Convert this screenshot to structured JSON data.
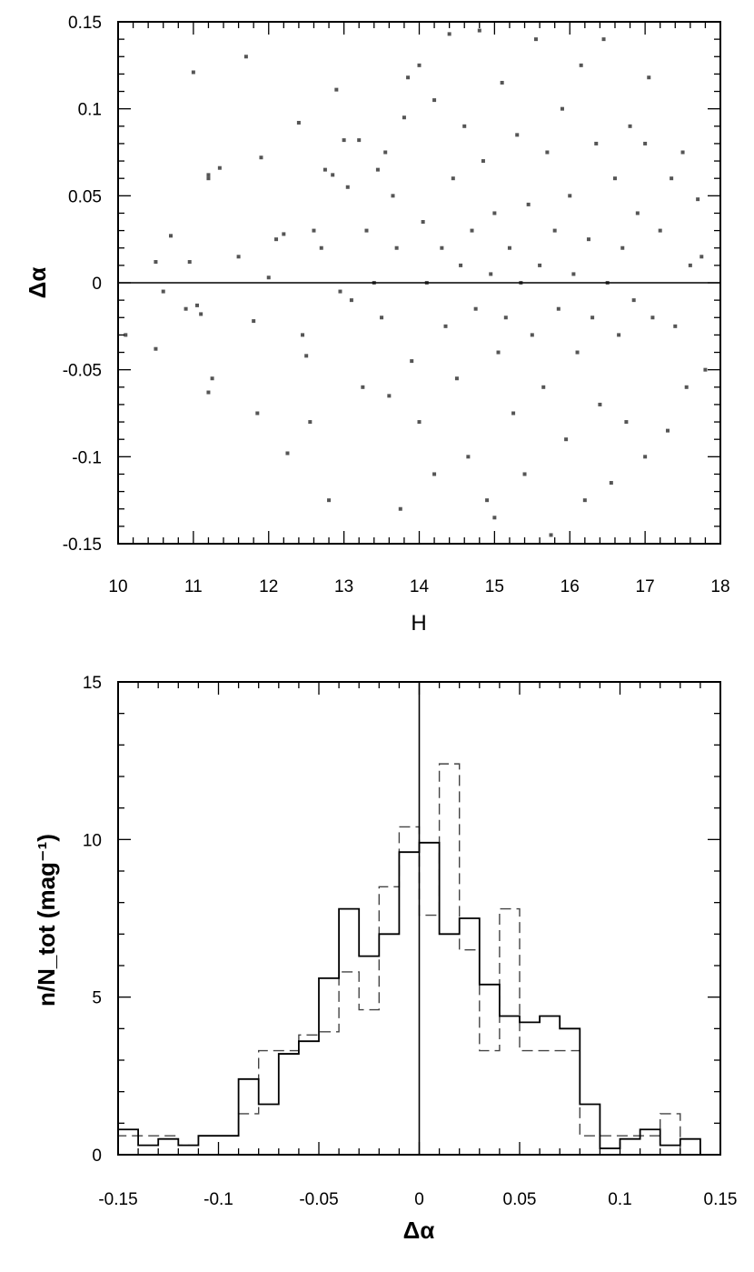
{
  "chart_data": [
    {
      "type": "scatter",
      "xlabel": "H",
      "ylabel": "Δα",
      "xlim": [
        10,
        18
      ],
      "ylim": [
        -0.15,
        0.15
      ],
      "x_ticks": [
        "10",
        "11",
        "12",
        "13",
        "14",
        "15",
        "16",
        "17",
        "18"
      ],
      "y_ticks": [
        "-0.15",
        "-0.1",
        "-0.05",
        "0",
        "0.05",
        "0.1",
        "0.15"
      ],
      "reference_line_y": 0,
      "grid": false,
      "points": [
        [
          10.1,
          -0.03
        ],
        [
          10.5,
          0.012
        ],
        [
          10.5,
          -0.038
        ],
        [
          10.6,
          -0.005
        ],
        [
          10.7,
          0.027
        ],
        [
          10.9,
          -0.015
        ],
        [
          10.95,
          0.012
        ],
        [
          11.0,
          0.121
        ],
        [
          11.05,
          -0.013
        ],
        [
          11.1,
          -0.018
        ],
        [
          11.2,
          0.062
        ],
        [
          11.2,
          0.06
        ],
        [
          11.2,
          -0.063
        ],
        [
          11.25,
          -0.055
        ],
        [
          11.35,
          0.066
        ],
        [
          11.6,
          0.015
        ],
        [
          11.7,
          0.13
        ],
        [
          11.8,
          -0.022
        ],
        [
          11.85,
          -0.075
        ],
        [
          11.9,
          0.072
        ],
        [
          12.0,
          0.003
        ],
        [
          12.1,
          0.025
        ],
        [
          12.2,
          0.028
        ],
        [
          12.25,
          -0.098
        ],
        [
          12.4,
          0.092
        ],
        [
          12.45,
          -0.03
        ],
        [
          12.5,
          -0.042
        ],
        [
          12.55,
          -0.08
        ],
        [
          12.6,
          0.03
        ],
        [
          12.7,
          0.02
        ],
        [
          12.75,
          0.065
        ],
        [
          12.8,
          -0.125
        ],
        [
          12.85,
          0.062
        ],
        [
          12.9,
          0.111
        ],
        [
          12.95,
          -0.005
        ],
        [
          13.0,
          0.082
        ],
        [
          13.05,
          0.055
        ],
        [
          13.1,
          -0.01
        ],
        [
          13.2,
          0.082
        ],
        [
          13.25,
          -0.06
        ],
        [
          13.3,
          0.03
        ],
        [
          13.4,
          0.0
        ],
        [
          13.45,
          0.065
        ],
        [
          13.5,
          -0.02
        ],
        [
          13.55,
          0.075
        ],
        [
          13.6,
          -0.065
        ],
        [
          13.65,
          0.05
        ],
        [
          13.7,
          0.02
        ],
        [
          13.75,
          -0.13
        ],
        [
          13.8,
          0.095
        ],
        [
          13.85,
          0.118
        ],
        [
          13.9,
          -0.045
        ],
        [
          14.0,
          0.125
        ],
        [
          14.0,
          -0.08
        ],
        [
          14.05,
          0.035
        ],
        [
          14.1,
          0.0
        ],
        [
          14.2,
          0.105
        ],
        [
          14.2,
          -0.11
        ],
        [
          14.3,
          0.02
        ],
        [
          14.35,
          -0.025
        ],
        [
          14.4,
          0.143
        ],
        [
          14.45,
          0.06
        ],
        [
          14.5,
          -0.055
        ],
        [
          14.55,
          0.01
        ],
        [
          14.6,
          0.09
        ],
        [
          14.65,
          -0.1
        ],
        [
          14.7,
          0.03
        ],
        [
          14.75,
          -0.015
        ],
        [
          14.8,
          0.145
        ],
        [
          14.85,
          0.07
        ],
        [
          14.9,
          -0.125
        ],
        [
          14.95,
          0.005
        ],
        [
          15.0,
          -0.135
        ],
        [
          15.0,
          0.04
        ],
        [
          15.05,
          -0.04
        ],
        [
          15.1,
          0.115
        ],
        [
          15.15,
          -0.02
        ],
        [
          15.2,
          0.02
        ],
        [
          15.25,
          -0.075
        ],
        [
          15.3,
          0.085
        ],
        [
          15.35,
          0.0
        ],
        [
          15.4,
          -0.11
        ],
        [
          15.45,
          0.045
        ],
        [
          15.5,
          -0.03
        ],
        [
          15.55,
          0.14
        ],
        [
          15.6,
          0.01
        ],
        [
          15.65,
          -0.06
        ],
        [
          15.7,
          0.075
        ],
        [
          15.75,
          -0.145
        ],
        [
          15.8,
          0.03
        ],
        [
          15.85,
          -0.015
        ],
        [
          15.9,
          0.1
        ],
        [
          15.95,
          -0.09
        ],
        [
          16.0,
          0.05
        ],
        [
          16.05,
          0.005
        ],
        [
          16.1,
          -0.04
        ],
        [
          16.15,
          0.125
        ],
        [
          16.2,
          -0.125
        ],
        [
          16.25,
          0.025
        ],
        [
          16.3,
          -0.02
        ],
        [
          16.35,
          0.08
        ],
        [
          16.4,
          -0.07
        ],
        [
          16.45,
          0.14
        ],
        [
          16.5,
          0.0
        ],
        [
          16.55,
          -0.115
        ],
        [
          16.6,
          0.06
        ],
        [
          16.65,
          -0.03
        ],
        [
          16.7,
          0.02
        ],
        [
          16.75,
          -0.08
        ],
        [
          16.8,
          0.09
        ],
        [
          16.85,
          -0.01
        ],
        [
          16.9,
          0.04
        ],
        [
          17.0,
          -0.1
        ],
        [
          17.0,
          0.08
        ],
        [
          17.05,
          0.118
        ],
        [
          17.1,
          -0.02
        ],
        [
          17.2,
          0.03
        ],
        [
          17.3,
          -0.085
        ],
        [
          17.35,
          0.06
        ],
        [
          17.4,
          -0.025
        ],
        [
          17.5,
          0.075
        ],
        [
          17.55,
          -0.06
        ],
        [
          17.6,
          0.01
        ],
        [
          17.7,
          0.048
        ],
        [
          17.8,
          -0.05
        ],
        [
          17.75,
          0.015
        ]
      ]
    },
    {
      "type": "histogram",
      "xlabel": "Δα",
      "ylabel": "n/N_tot (mag⁻¹)",
      "xlim": [
        -0.15,
        0.15
      ],
      "ylim": [
        0,
        15
      ],
      "x_ticks": [
        "-0.15",
        "-0.1",
        "-0.05",
        "0",
        "0.05",
        "0.1",
        "0.15"
      ],
      "y_ticks": [
        "0",
        "5",
        "10",
        "15"
      ],
      "reference_line_x": 0,
      "bin_width": 0.01,
      "series": [
        {
          "style": "solid",
          "bin_edges": [
            -0.15,
            -0.14,
            -0.13,
            -0.12,
            -0.11,
            -0.1,
            -0.09,
            -0.08,
            -0.07,
            -0.06,
            -0.05,
            -0.04,
            -0.03,
            -0.02,
            -0.01,
            0.0,
            0.01,
            0.02,
            0.03,
            0.04,
            0.05,
            0.06,
            0.07,
            0.08,
            0.09,
            0.1,
            0.11,
            0.12,
            0.13,
            0.14
          ],
          "values": [
            0.8,
            0.3,
            0.5,
            0.3,
            0.6,
            0.6,
            2.4,
            1.6,
            3.2,
            3.6,
            5.6,
            7.8,
            6.3,
            7.0,
            9.6,
            9.9,
            7.0,
            7.5,
            5.4,
            4.4,
            4.2,
            4.4,
            4.0,
            1.6,
            0.2,
            0.5,
            0.8,
            0.3,
            0.5
          ]
        },
        {
          "style": "dashed",
          "bin_edges": [
            -0.15,
            -0.14,
            -0.13,
            -0.12,
            -0.11,
            -0.1,
            -0.09,
            -0.08,
            -0.07,
            -0.06,
            -0.05,
            -0.04,
            -0.03,
            -0.02,
            -0.01,
            0.0,
            0.01,
            0.02,
            0.03,
            0.04,
            0.05,
            0.06,
            0.07,
            0.08,
            0.09,
            0.1,
            0.11,
            0.12,
            0.13
          ],
          "values": [
            0.6,
            0.6,
            0.6,
            0.3,
            0.6,
            0.6,
            1.3,
            3.3,
            3.3,
            3.8,
            3.9,
            5.8,
            4.6,
            8.5,
            10.4,
            7.6,
            12.4,
            6.5,
            3.3,
            7.8,
            3.3,
            3.3,
            3.3,
            0.6,
            0.6,
            0.6,
            0.6,
            1.3
          ]
        }
      ]
    }
  ]
}
